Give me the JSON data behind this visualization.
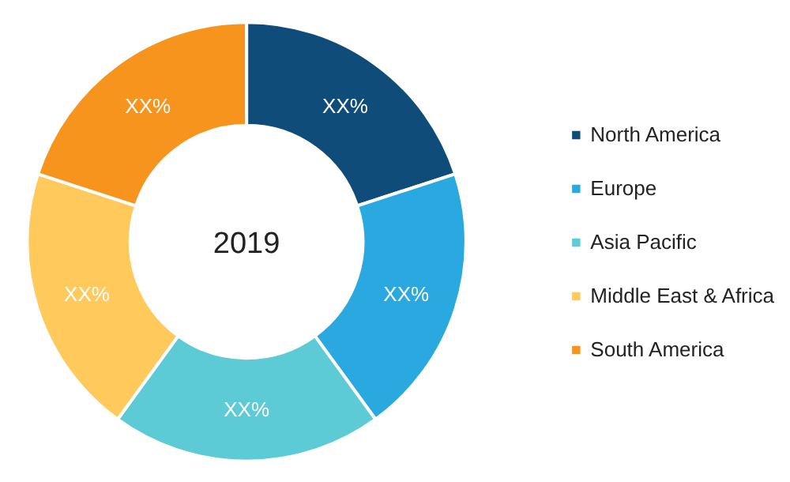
{
  "chart_data": {
    "type": "donut",
    "categories": [
      "North America",
      "Europe",
      "Asia Pacific",
      "Middle East & Africa",
      "South America"
    ],
    "values": [
      20,
      20,
      20,
      20,
      20
    ],
    "value_labels": [
      "XX%",
      "XX%",
      "XX%",
      "XX%",
      "XX%"
    ],
    "colors": [
      "#0f4c7a",
      "#2aa8e0",
      "#5ccbd6",
      "#ffc95c",
      "#f7941d"
    ],
    "annotations": [
      "2019"
    ],
    "legend": "right"
  }
}
